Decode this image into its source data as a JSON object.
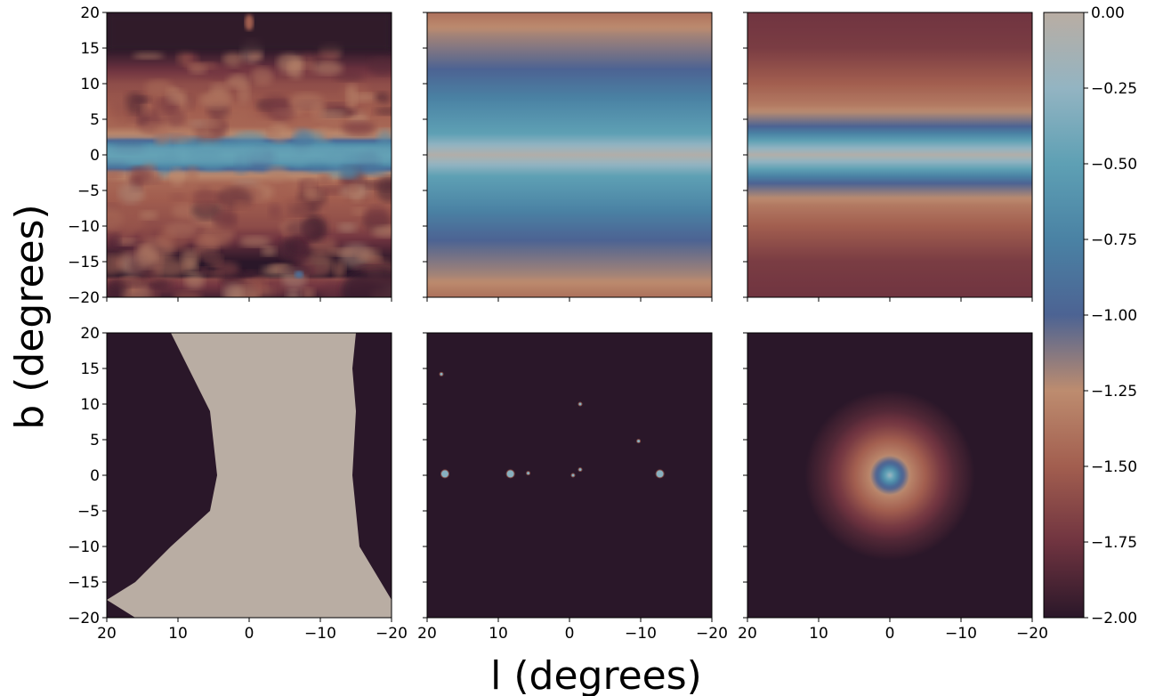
{
  "chart_data": {
    "type": "heatmap",
    "layout": "2x3 grid of sky maps with shared colorbar",
    "xlabel": "l (degrees)",
    "ylabel": "b (degrees)",
    "xlim": [
      20,
      -20
    ],
    "ylim": [
      -20,
      20
    ],
    "x_ticks": [
      20,
      10,
      0,
      -10,
      -20
    ],
    "x_tick_labels": [
      "20",
      "10",
      "0",
      "−10",
      "−20"
    ],
    "y_ticks": [
      20,
      15,
      10,
      5,
      0,
      -5,
      -10,
      -15,
      -20
    ],
    "y_tick_labels": [
      "20",
      "15",
      "10",
      "5",
      "0",
      "−5",
      "−10",
      "−15",
      "−20"
    ],
    "colorbar": {
      "range": [
        -2.0,
        0.0
      ],
      "ticks": [
        0.0,
        -0.25,
        -0.5,
        -0.75,
        -1.0,
        -1.25,
        -1.5,
        -1.75,
        -2.0
      ],
      "tick_labels": [
        "0.00",
        "−0.25",
        "−0.50",
        "−0.75",
        "−1.00",
        "−1.25",
        "−1.50",
        "−1.75",
        "−2.00"
      ],
      "colormap_stops": [
        {
          "v": -2.0,
          "color": "#2a1729"
        },
        {
          "v": -1.75,
          "color": "#703440"
        },
        {
          "v": -1.5,
          "color": "#a25e4f"
        },
        {
          "v": -1.25,
          "color": "#bd8c6f"
        },
        {
          "v": -1.0,
          "color": "#4c6393"
        },
        {
          "v": -0.75,
          "color": "#4a82a4"
        },
        {
          "v": -0.5,
          "color": "#5ea0b4"
        },
        {
          "v": -0.25,
          "color": "#93b4c2"
        },
        {
          "v": 0.0,
          "color": "#b9ada3"
        }
      ]
    },
    "panels": [
      {
        "row": 0,
        "col": 0,
        "pattern": "noisy_band",
        "description_values": {
          "plane_value": -0.6,
          "band_halfwidth_deg": 3,
          "off_plane_value": -1.5,
          "above_b15_value": -2.0
        }
      },
      {
        "row": 0,
        "col": 1,
        "pattern": "smooth_band_b",
        "profile": [
          {
            "b": 0,
            "v": -0.05
          },
          {
            "b": 3,
            "v": -0.5
          },
          {
            "b": 7,
            "v": -0.7
          },
          {
            "b": 12,
            "v": -1.0
          },
          {
            "b": 17,
            "v": -1.2
          },
          {
            "b": 20,
            "v": -1.4
          }
        ]
      },
      {
        "row": 0,
        "col": 2,
        "pattern": "smooth_band_b",
        "profile": [
          {
            "b": 0,
            "v": -0.05
          },
          {
            "b": 2,
            "v": -0.5
          },
          {
            "b": 4,
            "v": -1.0
          },
          {
            "b": 7,
            "v": -1.35
          },
          {
            "b": 10,
            "v": -1.5
          },
          {
            "b": 15,
            "v": -1.7
          },
          {
            "b": 20,
            "v": -1.75
          }
        ]
      },
      {
        "row": 1,
        "col": 0,
        "pattern": "hourglass",
        "description_values": {
          "inside_value": 0.0,
          "outside_value": -2.0
        }
      },
      {
        "row": 1,
        "col": 1,
        "pattern": "point_sources",
        "background_value": -2.0,
        "sources": [
          {
            "l": 17.5,
            "b": 0.2
          },
          {
            "l": 8.3,
            "b": 0.2
          },
          {
            "l": 5.8,
            "b": 0.3
          },
          {
            "l": -12.7,
            "b": 0.2
          },
          {
            "l": -1.5,
            "b": 10
          },
          {
            "l": -9.7,
            "b": 4.8
          },
          {
            "l": 18,
            "b": 14.2
          },
          {
            "l": -1.5,
            "b": 0.8
          },
          {
            "l": -0.5,
            "b": 0
          }
        ]
      },
      {
        "row": 1,
        "col": 2,
        "pattern": "radial",
        "profile": [
          {
            "r": 0,
            "v": -0.2
          },
          {
            "r": 1.5,
            "v": -0.9
          },
          {
            "r": 3,
            "v": -1.3
          },
          {
            "r": 5,
            "v": -1.5
          },
          {
            "r": 7,
            "v": -1.7
          },
          {
            "r": 9,
            "v": -1.85
          },
          {
            "r": 12,
            "v": -2.0
          }
        ]
      }
    ]
  }
}
